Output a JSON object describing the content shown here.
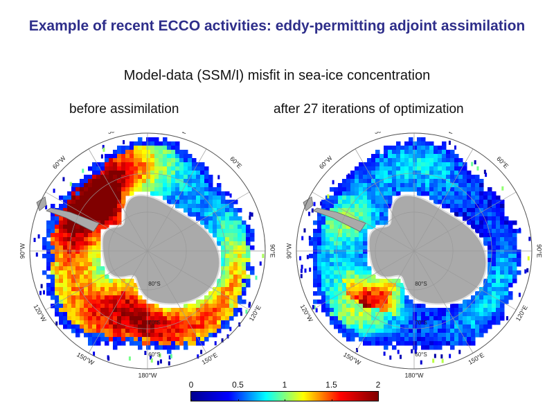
{
  "slide": {
    "title": "Example of recent ECCO activities: eddy-permitting adjoint assimilation",
    "subtitle": "Model-data (SSM/I) misfit in sea-ice concentration"
  },
  "panels": [
    {
      "label": "before assimilation",
      "state": "before",
      "meridian_labels": [
        "30°W",
        "30°E",
        "60°W",
        "60°E",
        "90°W",
        "90°E",
        "120°W",
        "120°E",
        "150°W",
        "150°E",
        "180°W"
      ],
      "latitude_labels": [
        "80°S",
        "70°S",
        "60°S"
      ]
    },
    {
      "label": "after 27 iterations of optimization",
      "state": "after",
      "meridian_labels": [
        "30°W",
        "30°E",
        "60°W",
        "60°E",
        "90°W",
        "90°E",
        "120°W",
        "120°E",
        "150°W",
        "150°E",
        "180°W"
      ],
      "latitude_labels": [
        "80°S",
        "70°S",
        "60°S"
      ]
    }
  ],
  "colorbar": {
    "ticks": [
      "0",
      "0.5",
      "1",
      "1.5",
      "2"
    ],
    "min": 0,
    "max": 2,
    "colormap": "jet",
    "colors": [
      "#00008f",
      "#0000ff",
      "#00ffff",
      "#ffff00",
      "#ff0000",
      "#800000"
    ]
  },
  "colors": {
    "title": "#2e2e8a",
    "land": "#aaaaaa",
    "ocean": "#ffffff",
    "grid": "#999999"
  }
}
